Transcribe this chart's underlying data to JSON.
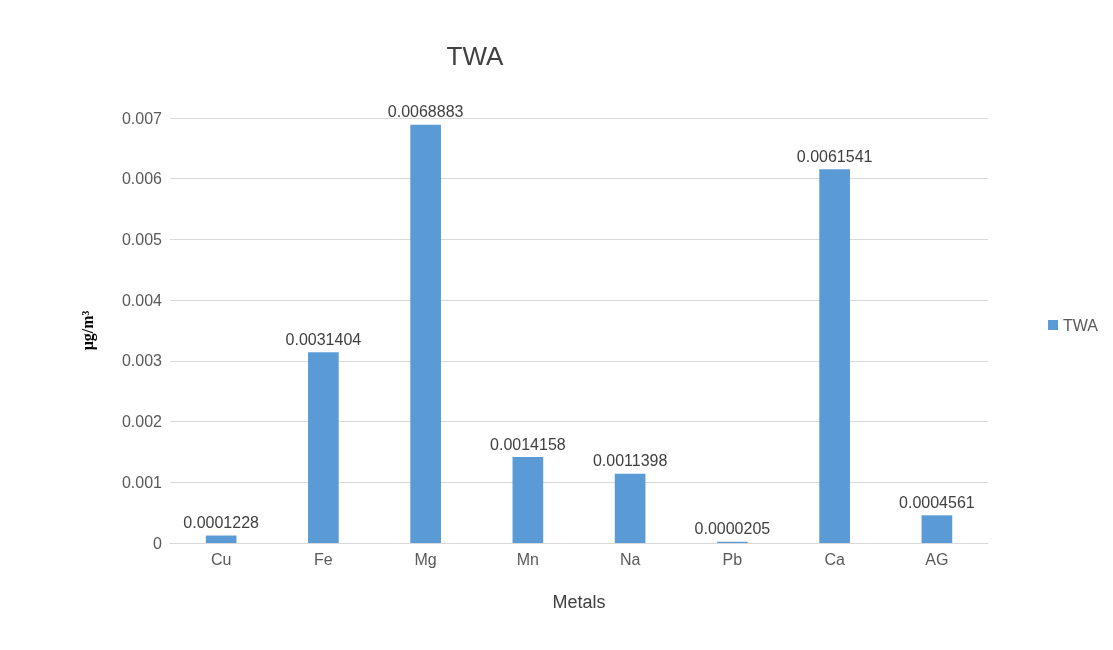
{
  "chart_data": {
    "type": "bar",
    "title": "TWA",
    "xlabel": "Metals",
    "ylabel": "μg/m³",
    "categories": [
      "Cu",
      "Fe",
      "Mg",
      "Mn",
      "Na",
      "Pb",
      "Ca",
      "AG"
    ],
    "series": [
      {
        "name": "TWA",
        "color": "#5b9bd5",
        "values": [
          0.0001228,
          0.0031404,
          0.0068883,
          0.0014158,
          0.0011398,
          2.05e-05,
          0.0061541,
          0.0004561
        ],
        "value_labels": [
          "0.0001228",
          "0.0031404",
          "0.0068883",
          "0.0014158",
          "0.0011398",
          "0.0000205",
          "0.0061541",
          "0.0004561"
        ]
      }
    ],
    "ylim": [
      0,
      0.007
    ],
    "yticks": [
      0,
      0.001,
      0.002,
      0.003,
      0.004,
      0.005,
      0.006,
      0.007
    ],
    "grid": "y",
    "legend": "right"
  }
}
